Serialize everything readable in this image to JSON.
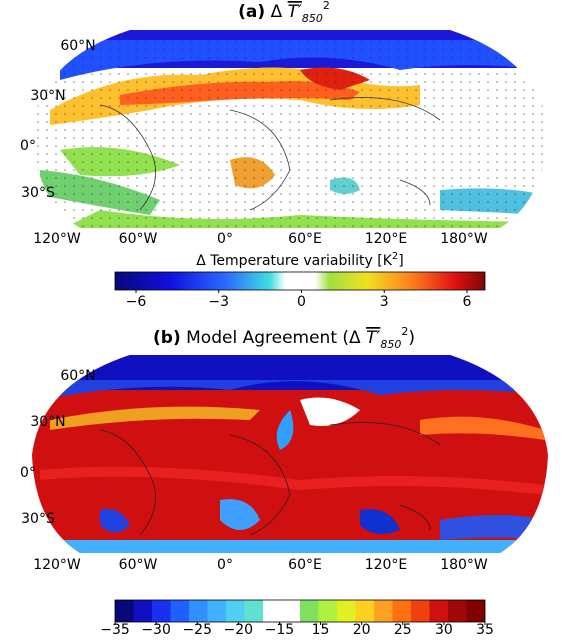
{
  "panels": [
    {
      "label": "(a)",
      "title_parts": [
        "Δ",
        "T′",
        "850",
        "2"
      ],
      "title_suffix": "",
      "lat_labels": [
        "60°N",
        "30°N",
        "0°",
        "30°S"
      ],
      "lon_labels": [
        "120°W",
        "60°W",
        "0°",
        "60°E",
        "120°E",
        "180°W"
      ],
      "colorbar_label": "Δ Temperature variability [K",
      "colorbar_label_sup": "2",
      "colorbar_label_end": "]",
      "colorbar_ticks": [
        "−6",
        "−3",
        "0",
        "3",
        "6"
      ]
    },
    {
      "label": "(b)",
      "title_parts": [
        "Model Agreement (Δ",
        "T′",
        "850",
        "2"
      ],
      "title_suffix": ")",
      "lat_labels": [
        "60°N",
        "30°N",
        "0°",
        "30°S"
      ],
      "lon_labels": [
        "120°W",
        "60°W",
        "0°",
        "60°E",
        "120°E",
        "180°W"
      ],
      "colorbar_ticks": [
        "−35",
        "−30",
        "−25",
        "−20",
        "−15",
        "15",
        "20",
        "25",
        "30",
        "35"
      ]
    }
  ]
}
